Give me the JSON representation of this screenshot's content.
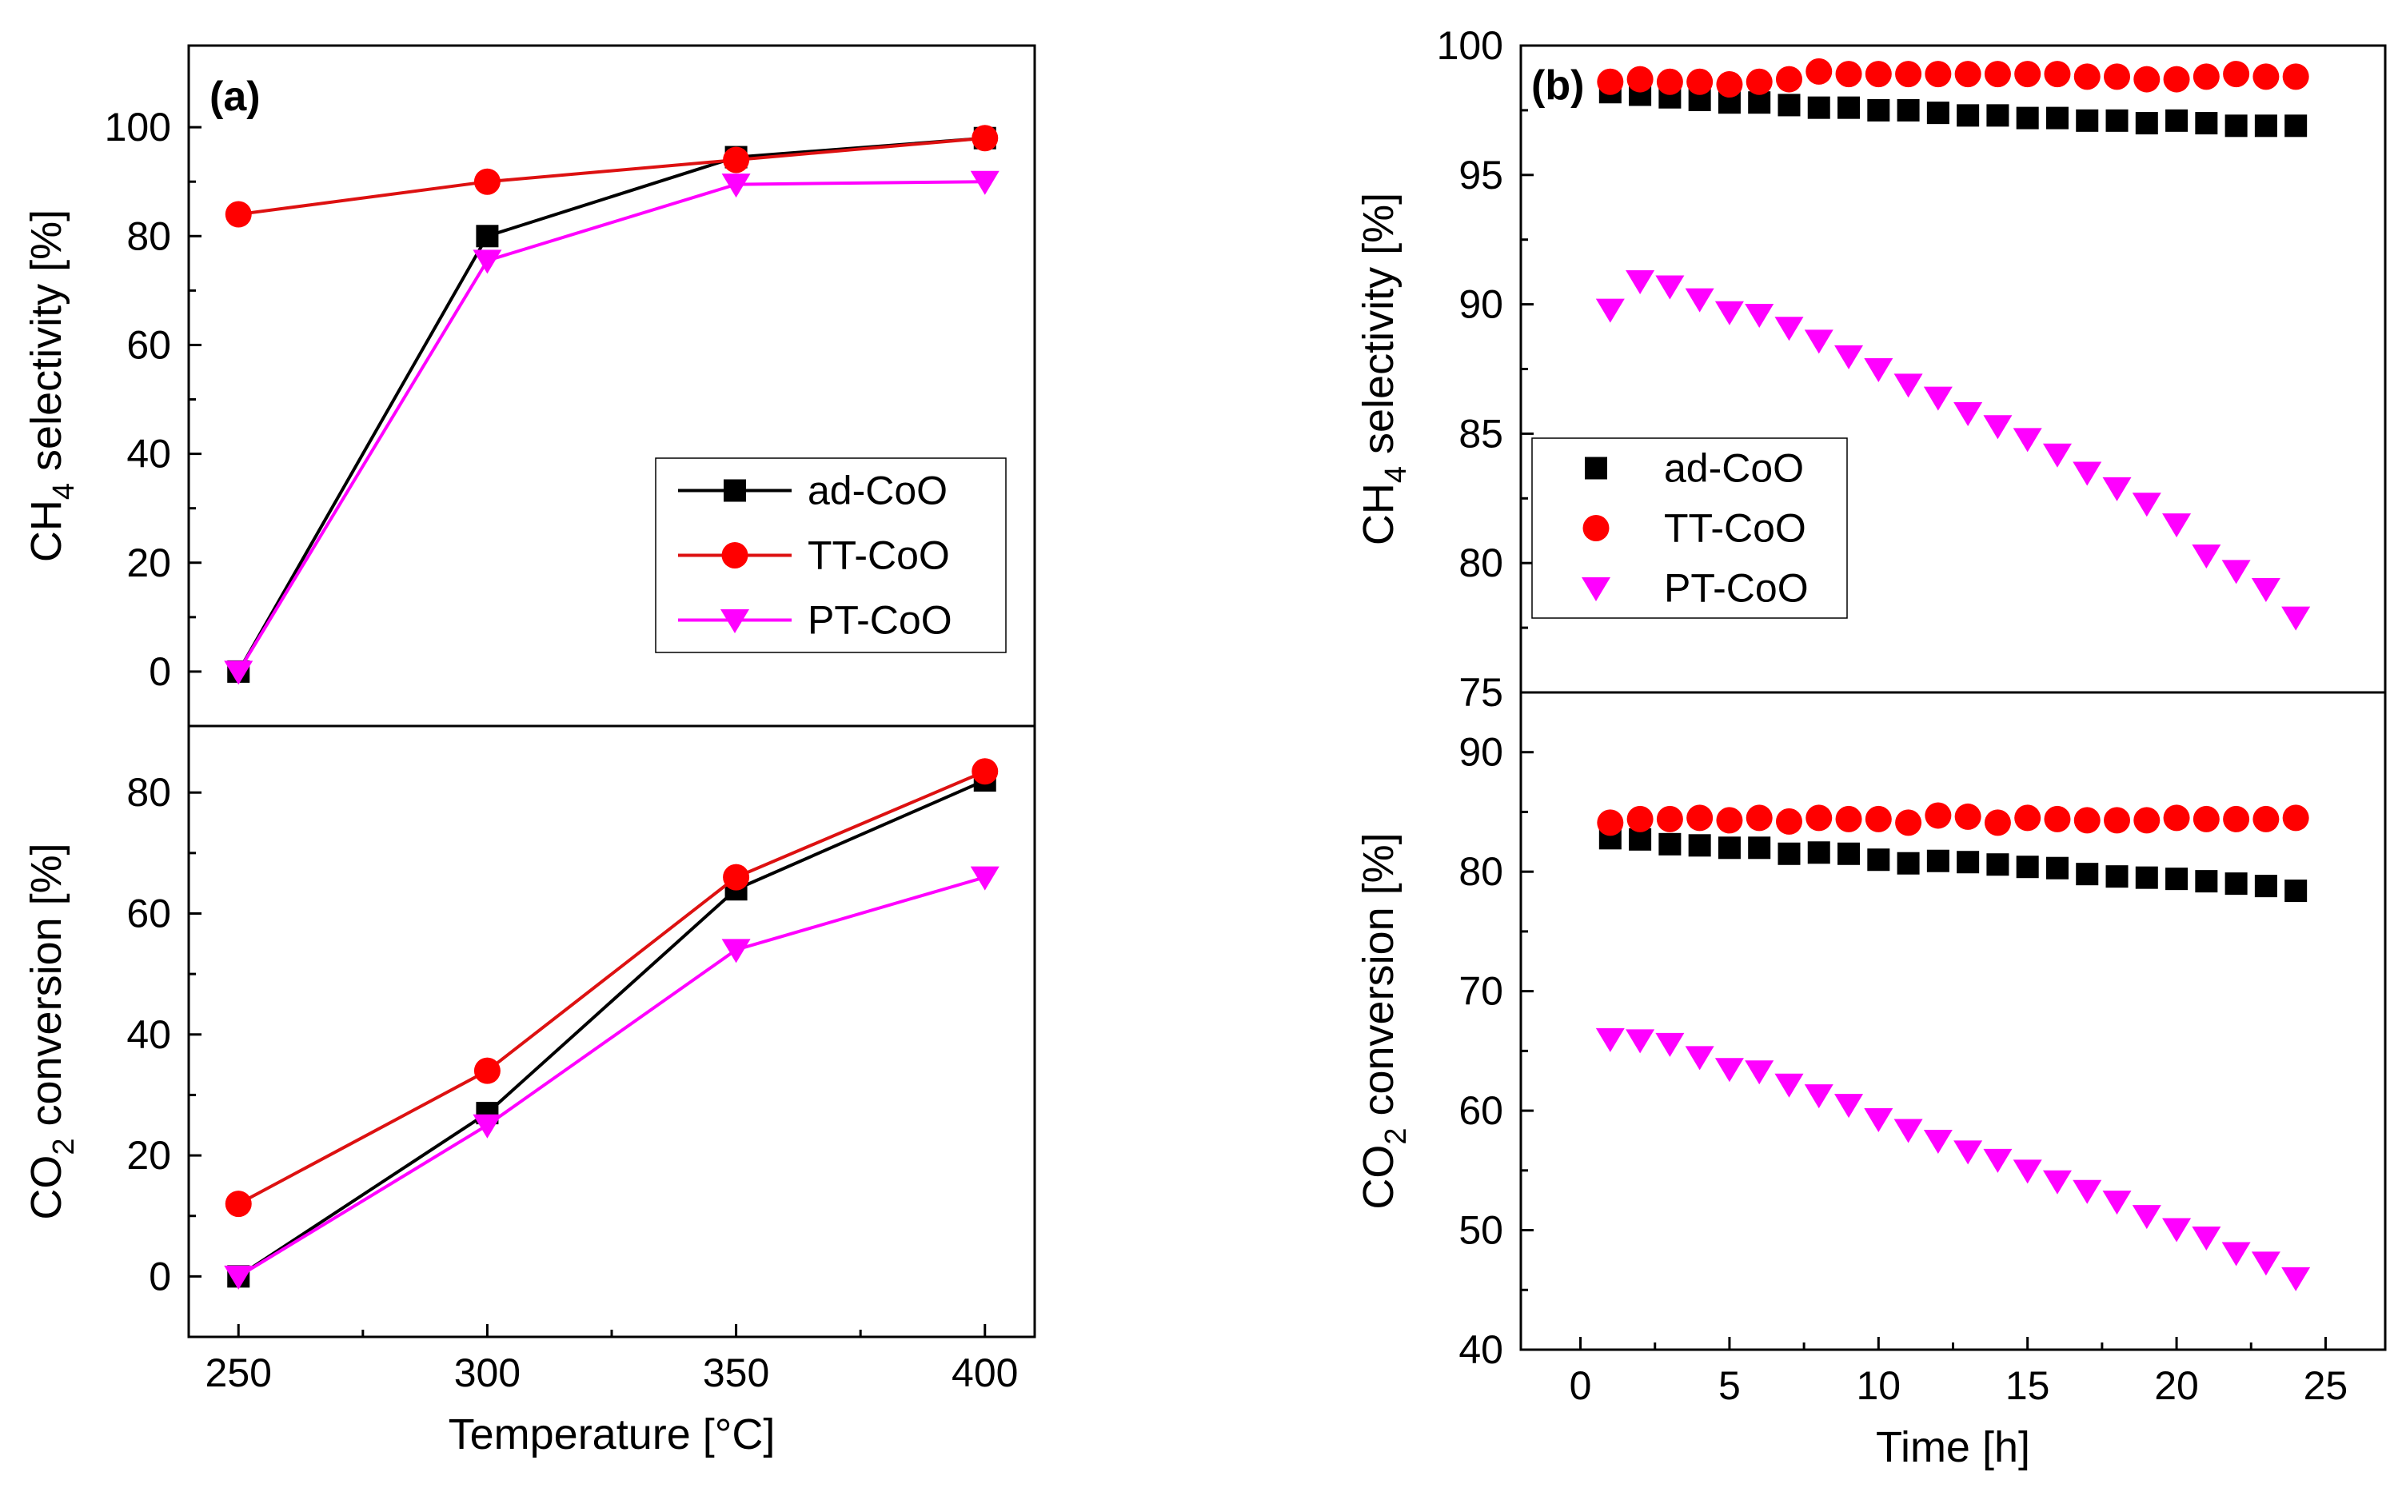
{
  "colors": {
    "ad": "#000000",
    "tt": "#ff0000",
    "pt": "#ff00ff",
    "tt_line": "#dd1111",
    "axis": "#000000"
  },
  "chart_data": [
    {
      "id": "a-top",
      "type": "line",
      "panel_tag": "(a)",
      "ylabel": {
        "main": "CH",
        "sub": "4",
        "rest": " selectivity [%]"
      },
      "xlim": [
        240,
        410
      ],
      "ylim": [
        -10,
        115
      ],
      "yticks": [
        0,
        20,
        40,
        60,
        80,
        100
      ],
      "legend": "center-right",
      "x": [
        250,
        300,
        350,
        400
      ],
      "series": [
        {
          "name": "ad-CoO",
          "key": "ad",
          "marker": "square",
          "values": [
            0,
            80,
            94.5,
            98
          ]
        },
        {
          "name": "TT-CoO",
          "key": "tt",
          "marker": "circle",
          "values": [
            84,
            90,
            94,
            98
          ]
        },
        {
          "name": "PT-CoO",
          "key": "pt",
          "marker": "triangle-down",
          "values": [
            0,
            75.5,
            89.5,
            90
          ]
        }
      ]
    },
    {
      "id": "a-bottom",
      "type": "line",
      "ylabel": {
        "main": "CO",
        "sub": "2",
        "rest": " conversion [%]"
      },
      "xlabel": "Temperature [°C]",
      "xlim": [
        240,
        410
      ],
      "ylim": [
        -10,
        91
      ],
      "yticks": [
        0,
        20,
        40,
        60,
        80
      ],
      "xticks": [
        250,
        300,
        350,
        400
      ],
      "x": [
        250,
        300,
        350,
        400
      ],
      "series": [
        {
          "name": "ad-CoO",
          "key": "ad",
          "marker": "square",
          "values": [
            0,
            27,
            64,
            82
          ]
        },
        {
          "name": "TT-CoO",
          "key": "tt",
          "marker": "circle",
          "values": [
            12,
            34,
            66,
            83.5
          ]
        },
        {
          "name": "PT-CoO",
          "key": "pt",
          "marker": "triangle-down",
          "values": [
            0,
            25,
            54,
            66
          ]
        }
      ]
    },
    {
      "id": "b-top",
      "type": "scatter",
      "panel_tag": "(b)",
      "ylabel": {
        "main": "CH",
        "sub": "4",
        "rest": " selectivity [%]"
      },
      "xlim": [
        -2,
        27
      ],
      "ylim": [
        75,
        100
      ],
      "yticks": [
        75,
        80,
        85,
        90,
        95,
        100
      ],
      "legend": "lower-left",
      "x": [
        1,
        2,
        3,
        4,
        5,
        6,
        7,
        8,
        9,
        10,
        11,
        12,
        13,
        14,
        15,
        16,
        17,
        18,
        19,
        20,
        21,
        22,
        23,
        24
      ],
      "series": [
        {
          "name": "ad-CoO",
          "key": "ad",
          "marker": "square",
          "values": [
            98.2,
            98.1,
            98.0,
            97.9,
            97.8,
            97.8,
            97.7,
            97.6,
            97.6,
            97.5,
            97.5,
            97.4,
            97.3,
            97.3,
            97.2,
            97.2,
            97.1,
            97.1,
            97.0,
            97.1,
            97.0,
            96.9,
            96.9,
            96.9
          ]
        },
        {
          "name": "TT-CoO",
          "key": "tt",
          "marker": "circle",
          "values": [
            98.6,
            98.7,
            98.6,
            98.6,
            98.5,
            98.6,
            98.7,
            99.0,
            98.9,
            98.9,
            98.9,
            98.9,
            98.9,
            98.9,
            98.9,
            98.9,
            98.8,
            98.8,
            98.7,
            98.7,
            98.8,
            98.9,
            98.8,
            98.8
          ]
        },
        {
          "name": "PT-CoO",
          "key": "pt",
          "marker": "triangle-down",
          "values": [
            89.8,
            90.9,
            90.7,
            90.2,
            89.7,
            89.6,
            89.1,
            88.6,
            88.0,
            87.5,
            86.9,
            86.4,
            85.8,
            85.3,
            84.8,
            84.2,
            83.5,
            82.9,
            82.3,
            81.5,
            80.3,
            79.7,
            79.0,
            77.9
          ]
        }
      ]
    },
    {
      "id": "b-bottom",
      "type": "scatter",
      "ylabel": {
        "main": "CO",
        "sub": "2",
        "rest": " conversion [%]"
      },
      "xlabel": "Time [h]",
      "xlim": [
        -2,
        27
      ],
      "ylim": [
        40,
        95
      ],
      "yticks": [
        40,
        50,
        60,
        70,
        80,
        90
      ],
      "xticks": [
        0,
        5,
        10,
        15,
        20,
        25
      ],
      "x": [
        1,
        2,
        3,
        4,
        5,
        6,
        7,
        8,
        9,
        10,
        11,
        12,
        13,
        14,
        15,
        16,
        17,
        18,
        19,
        20,
        21,
        22,
        23,
        24
      ],
      "series": [
        {
          "name": "ad-CoO",
          "key": "ad",
          "marker": "square",
          "values": [
            82.8,
            82.7,
            82.3,
            82.2,
            82.0,
            82.0,
            81.5,
            81.6,
            81.5,
            81.0,
            80.7,
            80.9,
            80.8,
            80.6,
            80.4,
            80.3,
            79.8,
            79.6,
            79.5,
            79.4,
            79.2,
            79.0,
            78.8,
            78.4
          ]
        },
        {
          "name": "TT-CoO",
          "key": "tt",
          "marker": "circle",
          "values": [
            84.1,
            84.4,
            84.4,
            84.5,
            84.3,
            84.5,
            84.2,
            84.5,
            84.4,
            84.4,
            84.1,
            84.7,
            84.6,
            84.1,
            84.5,
            84.4,
            84.3,
            84.3,
            84.3,
            84.5,
            84.4,
            84.4,
            84.4,
            84.5
          ]
        },
        {
          "name": "PT-CoO",
          "key": "pt",
          "marker": "triangle-down",
          "values": [
            66.0,
            65.9,
            65.6,
            64.5,
            63.5,
            63.3,
            62.2,
            61.3,
            60.5,
            59.3,
            58.4,
            57.5,
            56.6,
            55.9,
            55.0,
            54.1,
            53.3,
            52.4,
            51.2,
            50.1,
            49.4,
            48.1,
            47.3,
            46.0
          ]
        }
      ]
    }
  ]
}
